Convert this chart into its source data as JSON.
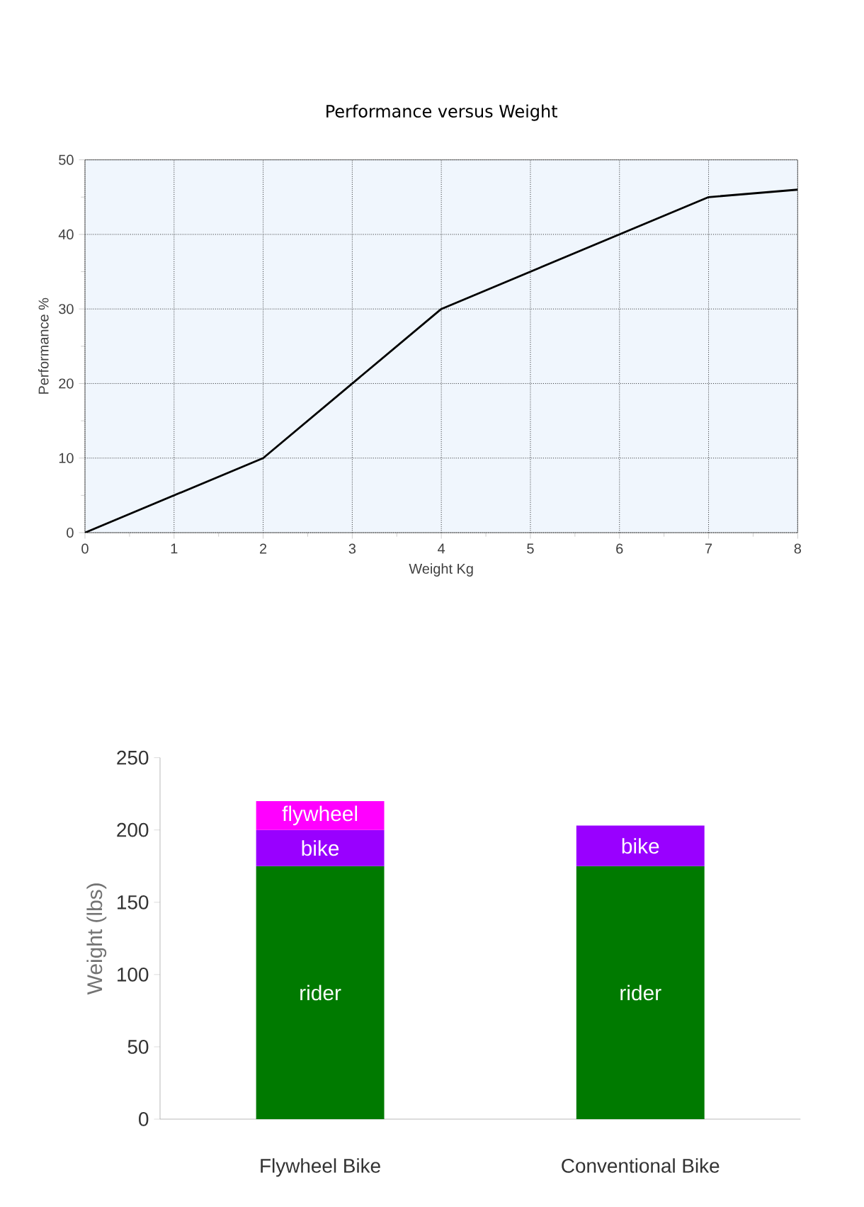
{
  "chart_data": [
    {
      "type": "line",
      "title": "Performance versus Weight",
      "xlabel": "Weight Kg",
      "ylabel": "Performance %",
      "x": [
        0,
        2,
        4,
        7,
        8
      ],
      "series": [
        {
          "color": "#000000",
          "values": [
            0,
            10,
            30,
            45,
            46
          ]
        }
      ],
      "xlim": [
        0,
        8
      ],
      "ylim": [
        0,
        50
      ],
      "xticks": [
        0,
        1,
        2,
        3,
        4,
        5,
        6,
        7,
        8
      ],
      "yticks": [
        0,
        10,
        20,
        30,
        40,
        50
      ],
      "grid": true,
      "legend": false,
      "marker": "none",
      "line_style": "solid"
    },
    {
      "type": "bar",
      "stacked": true,
      "ylabel": "Weight (lbs)",
      "categories": [
        "Flywheel Bike",
        "Conventional Bike"
      ],
      "series": [
        {
          "name": "rider",
          "color": "#007a00",
          "values": [
            175,
            175
          ]
        },
        {
          "name": "bike",
          "color": "#9900ff",
          "values": [
            25,
            28
          ]
        },
        {
          "name": "flywheel",
          "color": "#ff00ff",
          "values": [
            20,
            null
          ]
        }
      ],
      "ylim": [
        0,
        250
      ],
      "yticks": [
        0,
        50,
        100,
        150,
        200,
        250
      ],
      "grid": false,
      "legend": false
    }
  ]
}
